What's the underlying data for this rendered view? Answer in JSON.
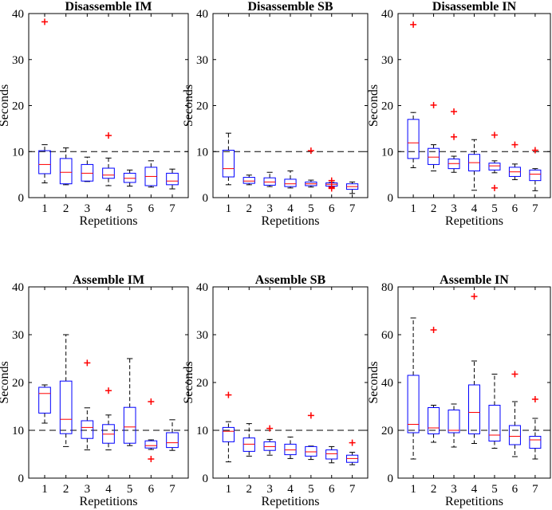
{
  "figure": {
    "colors": {
      "box": "#0000ff",
      "median": "#ff0000",
      "outlier": "#ff0000",
      "whisker": "#000000",
      "reference": "#000000"
    }
  },
  "chart_data": [
    {
      "type": "boxplot",
      "title": "Disassemble IM",
      "xlabel": "Repetitions",
      "ylabel": "Seconds",
      "ylim": [
        0,
        40
      ],
      "yticks": [
        0,
        10,
        20,
        30,
        40
      ],
      "reference_line": 10,
      "categories": [
        "1",
        "2",
        "3",
        "4",
        "5",
        "6",
        "7"
      ],
      "boxes": [
        {
          "whislo": 3.2,
          "q1": 5.2,
          "med": 7.2,
          "q3": 10.2,
          "whishi": 11.5,
          "fliers": [
            38.2
          ]
        },
        {
          "whislo": 2.8,
          "q1": 3.0,
          "med": 5.5,
          "q3": 8.5,
          "whishi": 10.8,
          "fliers": []
        },
        {
          "whislo": 3.5,
          "q1": 3.6,
          "med": 5.3,
          "q3": 7.2,
          "whishi": 8.8,
          "fliers": []
        },
        {
          "whislo": 2.6,
          "q1": 4.2,
          "med": 4.9,
          "q3": 6.4,
          "whishi": 8.6,
          "fliers": [
            13.5
          ]
        },
        {
          "whislo": 2.5,
          "q1": 3.3,
          "med": 4.2,
          "q3": 5.3,
          "whishi": 6.0,
          "fliers": []
        },
        {
          "whislo": 2.3,
          "q1": 2.6,
          "med": 4.6,
          "q3": 6.6,
          "whishi": 8.0,
          "fliers": []
        },
        {
          "whislo": 1.9,
          "q1": 2.8,
          "med": 3.6,
          "q3": 5.3,
          "whishi": 6.2,
          "fliers": []
        }
      ]
    },
    {
      "type": "boxplot",
      "title": "Disassemble SB",
      "xlabel": "Repetitions",
      "ylabel": "Seconds",
      "ylim": [
        0,
        40
      ],
      "yticks": [
        0,
        10,
        20,
        30,
        40
      ],
      "reference_line": 10,
      "categories": [
        "1",
        "2",
        "3",
        "4",
        "5",
        "6",
        "7"
      ],
      "boxes": [
        {
          "whislo": 2.8,
          "q1": 4.5,
          "med": 6.3,
          "q3": 10.3,
          "whishi": 14.0,
          "fliers": []
        },
        {
          "whislo": 2.8,
          "q1": 3.1,
          "med": 3.6,
          "q3": 4.4,
          "whishi": 4.9,
          "fliers": []
        },
        {
          "whislo": 2.4,
          "q1": 2.7,
          "med": 3.4,
          "q3": 4.3,
          "whishi": 5.5,
          "fliers": []
        },
        {
          "whislo": 2.1,
          "q1": 2.4,
          "med": 3.0,
          "q3": 4.0,
          "whishi": 5.8,
          "fliers": []
        },
        {
          "whislo": 2.3,
          "q1": 2.6,
          "med": 3.0,
          "q3": 3.4,
          "whishi": 3.8,
          "fliers": [
            10.2
          ]
        },
        {
          "whislo": 2.1,
          "q1": 2.5,
          "med": 2.9,
          "q3": 3.2,
          "whishi": 3.3,
          "fliers": [
            3.7,
            2.3,
            2.0
          ]
        },
        {
          "whislo": 0.9,
          "q1": 1.8,
          "med": 2.4,
          "q3": 3.0,
          "whishi": 3.4,
          "fliers": []
        }
      ]
    },
    {
      "type": "boxplot",
      "title": "Disassemble IN",
      "xlabel": "Repetitions",
      "ylabel": "Seconds",
      "ylim": [
        0,
        40
      ],
      "yticks": [
        0,
        10,
        20,
        30,
        40
      ],
      "reference_line": 10,
      "categories": [
        "1",
        "2",
        "3",
        "4",
        "5",
        "6",
        "7"
      ],
      "boxes": [
        {
          "whislo": 6.5,
          "q1": 8.5,
          "med": 11.9,
          "q3": 17.0,
          "whishi": 18.5,
          "fliers": [
            37.6
          ]
        },
        {
          "whislo": 5.8,
          "q1": 7.2,
          "med": 8.8,
          "q3": 10.7,
          "whishi": 11.5,
          "fliers": [
            20.1
          ]
        },
        {
          "whislo": 5.5,
          "q1": 6.3,
          "med": 7.4,
          "q3": 8.4,
          "whishi": 9.0,
          "fliers": [
            18.7,
            13.2
          ]
        },
        {
          "whislo": 1.6,
          "q1": 5.8,
          "med": 7.6,
          "q3": 9.4,
          "whishi": 12.6,
          "fliers": []
        },
        {
          "whislo": 5.4,
          "q1": 6.0,
          "med": 6.9,
          "q3": 7.5,
          "whishi": 8.0,
          "fliers": [
            13.6,
            2.1
          ]
        },
        {
          "whislo": 3.9,
          "q1": 4.6,
          "med": 5.6,
          "q3": 6.6,
          "whishi": 7.3,
          "fliers": [
            11.5
          ]
        },
        {
          "whislo": 1.5,
          "q1": 3.7,
          "med": 5.1,
          "q3": 6.0,
          "whishi": 6.3,
          "fliers": [
            10.3
          ]
        }
      ]
    },
    {
      "type": "boxplot",
      "title": "Assemble IM",
      "xlabel": "Repetitions",
      "ylabel": "Seconds",
      "ylim": [
        0,
        40
      ],
      "yticks": [
        0,
        10,
        20,
        30,
        40
      ],
      "reference_line": 10,
      "categories": [
        "1",
        "2",
        "3",
        "4",
        "5",
        "6",
        "7"
      ],
      "boxes": [
        {
          "whislo": 11.5,
          "q1": 13.6,
          "med": 17.7,
          "q3": 19.0,
          "whishi": 19.5,
          "fliers": []
        },
        {
          "whislo": 6.6,
          "q1": 9.3,
          "med": 12.3,
          "q3": 20.3,
          "whishi": 30.0,
          "fliers": []
        },
        {
          "whislo": 5.9,
          "q1": 8.3,
          "med": 10.6,
          "q3": 12.0,
          "whishi": 14.7,
          "fliers": [
            24.1
          ]
        },
        {
          "whislo": 5.9,
          "q1": 7.3,
          "med": 9.2,
          "q3": 11.2,
          "whishi": 13.2,
          "fliers": [
            18.3
          ]
        },
        {
          "whislo": 6.8,
          "q1": 7.3,
          "med": 10.7,
          "q3": 14.8,
          "whishi": 25.0,
          "fliers": []
        },
        {
          "whislo": 6.0,
          "q1": 6.3,
          "med": 6.8,
          "q3": 7.8,
          "whishi": 8.0,
          "fliers": [
            16.0,
            4.0
          ]
        },
        {
          "whislo": 5.8,
          "q1": 6.4,
          "med": 7.4,
          "q3": 9.5,
          "whishi": 12.2,
          "fliers": []
        }
      ]
    },
    {
      "type": "boxplot",
      "title": "Assemble SB",
      "xlabel": "Repetitions",
      "ylabel": "Seconds",
      "ylim": [
        0,
        40
      ],
      "yticks": [
        0,
        10,
        20,
        30,
        40
      ],
      "reference_line": 10,
      "categories": [
        "1",
        "2",
        "3",
        "4",
        "5",
        "6",
        "7"
      ],
      "boxes": [
        {
          "whislo": 3.4,
          "q1": 7.6,
          "med": 9.8,
          "q3": 10.6,
          "whishi": 11.8,
          "fliers": [
            17.4
          ]
        },
        {
          "whislo": 4.6,
          "q1": 5.6,
          "med": 7.1,
          "q3": 8.4,
          "whishi": 11.4,
          "fliers": []
        },
        {
          "whislo": 4.8,
          "q1": 5.8,
          "med": 6.6,
          "q3": 7.6,
          "whishi": 8.1,
          "fliers": [
            10.4
          ]
        },
        {
          "whislo": 4.1,
          "q1": 4.9,
          "med": 5.9,
          "q3": 7.1,
          "whishi": 8.6,
          "fliers": []
        },
        {
          "whislo": 3.9,
          "q1": 4.6,
          "med": 5.5,
          "q3": 6.6,
          "whishi": 6.7,
          "fliers": [
            13.1
          ]
        },
        {
          "whislo": 3.2,
          "q1": 4.0,
          "med": 5.1,
          "q3": 5.9,
          "whishi": 6.6,
          "fliers": []
        },
        {
          "whislo": 2.8,
          "q1": 3.3,
          "med": 4.1,
          "q3": 4.8,
          "whishi": 5.4,
          "fliers": [
            7.4
          ]
        }
      ]
    },
    {
      "type": "boxplot",
      "title": "Assemble IN",
      "xlabel": "Repetitions",
      "ylabel": "Seconds",
      "ylim": [
        0,
        80
      ],
      "yticks": [
        0,
        20,
        40,
        60,
        80
      ],
      "reference_line": 20,
      "categories": [
        "1",
        "2",
        "3",
        "4",
        "5",
        "6",
        "7"
      ],
      "boxes": [
        {
          "whislo": 8.0,
          "q1": 19.0,
          "med": 22.5,
          "q3": 43.0,
          "whishi": 67.0,
          "fliers": []
        },
        {
          "whislo": 15.0,
          "q1": 18.5,
          "med": 21.0,
          "q3": 29.5,
          "whishi": 30.5,
          "fliers": [
            62.0
          ]
        },
        {
          "whislo": 13.0,
          "q1": 19.0,
          "med": 20.0,
          "q3": 28.5,
          "whishi": 31.0,
          "fliers": []
        },
        {
          "whislo": 14.5,
          "q1": 18.5,
          "med": 27.5,
          "q3": 39.0,
          "whishi": 49.0,
          "fliers": [
            76.0
          ]
        },
        {
          "whislo": 12.5,
          "q1": 15.5,
          "med": 18.0,
          "q3": 30.5,
          "whishi": 43.5,
          "fliers": []
        },
        {
          "whislo": 9.0,
          "q1": 14.0,
          "med": 17.5,
          "q3": 22.0,
          "whishi": 32.0,
          "fliers": [
            43.5
          ]
        },
        {
          "whislo": 8.0,
          "q1": 12.5,
          "med": 16.0,
          "q3": 17.5,
          "whishi": 25.0,
          "fliers": [
            33.0
          ]
        }
      ]
    }
  ]
}
